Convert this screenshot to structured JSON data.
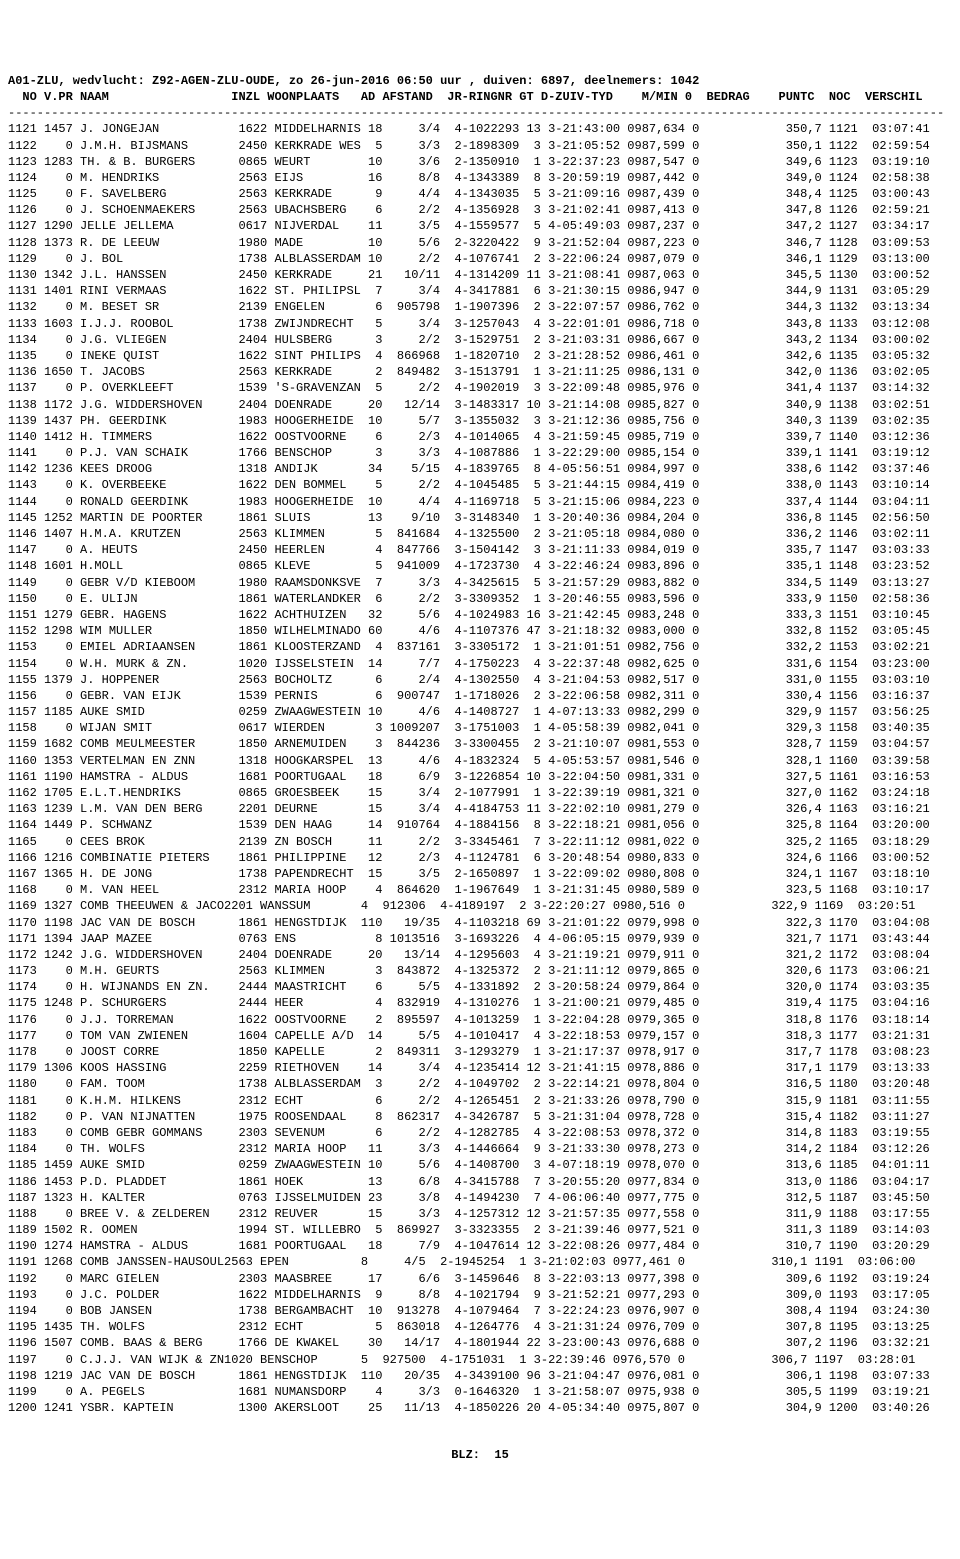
{
  "header": {
    "line1": "A01-ZLU, wedvlucht: Z92-AGEN-ZLU-OUDE, zo 26-jun-2016 06:50 uur , duiven: 6897, deelnemers: 1042",
    "line2": "  NO V.PR NAAM                 INZL WOONPLAATS   AD AFSTAND  JR-RINGNR GT D-ZUIV-TYD    M/MIN 0  BEDRAG    PUNTC  NOC  VERSCHIL",
    "divider": "----------------------------------------------------------------------------------------------------------------------------------"
  },
  "footer": "BLZ:  15",
  "columns": [
    "NO",
    "V.PR",
    "NAAM",
    "INZL",
    "WOONPLAATS",
    "AD",
    "AFSTAND",
    "JR-RINGNR",
    "GT",
    "D-ZUIV-TYD",
    "M/MIN",
    "0",
    "BEDRAG",
    "PUNTC",
    "NOC",
    "VERSCHIL"
  ],
  "groups": [
    [
      "1121 1457 J. JONGEJAN           1622 MIDDELHARNIS 18     3/4  4-1022293 13 3-21:43:00 0987,634 0            350,7 1121  03:07:41",
      "1122    0 J.M.H. BIJSMANS       2450 KERKRADE WES  5     3/3  2-1898309  3 3-21:05:52 0987,599 0            350,1 1122  02:59:54",
      "1123 1283 TH. & B. BURGERS      0865 WEURT        10     3/6  2-1350910  1 3-22:37:23 0987,547 0            349,6 1123  03:19:10",
      "1124    0 M. HENDRIKS           2563 EIJS         16     8/8  4-1343389  8 3-20:59:19 0987,442 0            349,0 1124  02:58:38",
      "1125    0 F. SAVELBERG          2563 KERKRADE      9     4/4  4-1343035  5 3-21:09:16 0987,439 0            348,4 1125  03:00:43",
      "1126    0 J. SCHOENMAEKERS      2563 UBACHSBERG    6     2/2  4-1356928  3 3-21:02:41 0987,413 0            347,8 1126  02:59:21",
      "1127 1290 JELLE JELLEMA         0617 NIJVERDAL    11     3/5  4-1559577  5 4-05:49:03 0987,237 0            347,2 1127  03:34:17",
      "1128 1373 R. DE LEEUW           1980 MADE         10     5/6  2-3220422  9 3-21:52:04 0987,223 0            346,7 1128  03:09:53",
      "1129    0 J. BOL                1738 ALBLASSERDAM 10     2/2  4-1076741  2 3-22:06:24 0987,079 0            346,1 1129  03:13:00",
      "1130 1342 J.L. HANSSEN          2450 KERKRADE     21   10/11  4-1314209 11 3-21:08:41 0987,063 0            345,5 1130  03:00:52"
    ],
    [
      "1131 1401 RINI VERMAAS          1622 ST. PHILIPSL  7     3/4  4-3417881  6 3-21:30:15 0986,947 0            344,9 1131  03:05:29",
      "1132    0 M. BESET SR           2139 ENGELEN       6  905798  1-1907396  2 3-22:07:57 0986,762 0            344,3 1132  03:13:34",
      "1133 1603 I.J.J. ROOBOL         1738 ZWIJNDRECHT   5     3/4  3-1257043  4 3-22:01:01 0986,718 0            343,8 1133  03:12:08",
      "1134    0 J.G. VLIEGEN          2404 HULSBERG      3     2/2  3-1529751  2 3-21:03:31 0986,667 0            343,2 1134  03:00:02",
      "1135    0 INEKE QUIST           1622 SINT PHILIPS  4  866968  1-1820710  2 3-21:28:52 0986,461 0            342,6 1135  03:05:32",
      "1136 1650 T. JACOBS             2563 KERKRADE      2  849482  3-1513791  1 3-21:11:25 0986,131 0            342,0 1136  03:02:05",
      "1137    0 P. OVERKLEEFT         1539 'S-GRAVENZAN  5     2/2  4-1902019  3 3-22:09:48 0985,976 0            341,4 1137  03:14:32",
      "1138 1172 J.G. WIDDERSHOVEN     2404 DOENRADE     20   12/14  3-1483317 10 3-21:14:08 0985,827 0            340,9 1138  03:02:51",
      "1139 1437 PH. GEERDINK          1983 HOOGERHEIDE  10     5/7  3-1355032  3 3-21:12:36 0985,756 0            340,3 1139  03:02:35",
      "1140 1412 H. TIMMERS            1622 OOSTVOORNE    6     2/3  4-1014065  4 3-21:59:45 0985,719 0            339,7 1140  03:12:36"
    ],
    [
      "1141    0 P.J. VAN SCHAIK       1766 BENSCHOP      3     3/3  4-1087886  1 3-22:29:00 0985,154 0            339,1 1141  03:19:12",
      "1142 1236 KEES DROOG            1318 ANDIJK       34    5/15  4-1839765  8 4-05:56:51 0984,997 0            338,6 1142  03:37:46",
      "1143    0 K. OVERBEEKE          1622 DEN BOMMEL    5     2/2  4-1045485  5 3-21:44:15 0984,419 0            338,0 1143  03:10:14",
      "1144    0 RONALD GEERDINK       1983 HOOGERHEIDE  10     4/4  4-1169718  5 3-21:15:06 0984,223 0            337,4 1144  03:04:11",
      "1145 1252 MARTIN DE POORTER     1861 SLUIS        13    9/10  3-3148340  1 3-20:40:36 0984,204 0            336,8 1145  02:56:50",
      "1146 1407 H.M.A. KRUTZEN        2563 KLIMMEN       5  841684  4-1325500  2 3-21:05:18 0984,080 0            336,2 1146  03:02:11",
      "1147    0 A. HEUTS              2450 HEERLEN       4  847766  3-1504142  3 3-21:11:33 0984,019 0            335,7 1147  03:03:33",
      "1148 1601 H.MOLL                0865 KLEVE         5  941009  4-1723730  4 3-22:46:24 0983,896 0            335,1 1148  03:23:52",
      "1149    0 GEBR V/D KIEBOOM      1980 RAAMSDONKSVE  7     3/3  4-3425615  5 3-21:57:29 0983,882 0            334,5 1149  03:13:27",
      "1150    0 E. ULIJN              1861 WATERLANDKER  6     2/2  3-3309352  1 3-20:46:55 0983,596 0            333,9 1150  02:58:36"
    ],
    [
      "1151 1279 GEBR. HAGENS          1622 ACHTHUIZEN   32     5/6  4-1024983 16 3-21:42:45 0983,248 0            333,3 1151  03:10:45",
      "1152 1298 WIM MULLER            1850 WILHELMINADO 60     4/6  4-1107376 47 3-21:18:32 0983,000 0            332,8 1152  03:05:45",
      "1153    0 EMIEL ADRIAANSEN      1861 KLOOSTERZAND  4  837161  3-3305172  1 3-21:01:51 0982,756 0            332,2 1153  03:02:21",
      "1154    0 W.H. MURK & ZN.       1020 IJSSELSTEIN  14     7/7  4-1750223  4 3-22:37:48 0982,625 0            331,6 1154  03:23:00",
      "1155 1379 J. HOPPENER           2563 BOCHOLTZ      6     2/4  4-1302550  4 3-21:04:53 0982,517 0            331,0 1155  03:03:10",
      "1156    0 GEBR. VAN EIJK        1539 PERNIS        6  900747  1-1718026  2 3-22:06:58 0982,311 0            330,4 1156  03:16:37",
      "1157 1185 AUKE SMID             0259 ZWAAGWESTEIN 10     4/6  4-1408727  1 4-07:13:33 0982,299 0            329,9 1157  03:56:25",
      "1158    0 WIJAN SMIT            0617 WIERDEN       3 1009207  3-1751003  1 4-05:58:39 0982,041 0            329,3 1158  03:40:35",
      "1159 1682 COMB MEULMEESTER      1850 ARNEMUIDEN    3  844236  3-3300455  2 3-21:10:07 0981,553 0            328,7 1159  03:04:57",
      "1160 1353 VERTELMAN EN ZNN      1318 HOOGKARSPEL  13     4/6  4-1832324  5 4-05:53:57 0981,546 0            328,1 1160  03:39:58"
    ],
    [
      "1161 1190 HAMSTRA - ALDUS       1681 POORTUGAAL   18     6/9  3-1226854 10 3-22:04:50 0981,331 0            327,5 1161  03:16:53",
      "1162 1705 E.L.T.HENDRIKS        0865 GROESBEEK    15     3/4  2-1077991  1 3-22:39:19 0981,321 0            327,0 1162  03:24:18",
      "1163 1239 L.M. VAN DEN BERG     2201 DEURNE       15     3/4  4-4184753 11 3-22:02:10 0981,279 0            326,4 1163  03:16:21",
      "1164 1449 P. SCHWANZ            1539 DEN HAAG     14  910764  4-1884156  8 3-22:18:21 0981,056 0            325,8 1164  03:20:00",
      "1165    0 CEES BROK             2139 ZN BOSCH     11     2/2  3-3345461  7 3-22:11:12 0981,022 0            325,2 1165  03:18:29",
      "1166 1216 COMBINATIE PIETERS    1861 PHILIPPINE   12     2/3  4-1124781  6 3-20:48:54 0980,833 0            324,6 1166  03:00:52",
      "1167 1365 H. DE JONG            1738 PAPENDRECHT  15     3/5  2-1650897  1 3-22:09:02 0980,808 0            324,1 1167  03:18:10",
      "1168    0 M. VAN HEEL           2312 MARIA HOOP    4  864620  1-1967649  1 3-21:31:45 0980,589 0            323,5 1168  03:10:17",
      "1169 1327 COMB THEEUWEN & JACO2201 WANSSUM       4  912306  4-4189197  2 3-22:20:27 0980,516 0            322,9 1169  03:20:51",
      "1170 1198 JAC VAN DE BOSCH      1861 HENGSTDIJK  110   19/35  4-1103218 69 3-21:01:22 0979,998 0            322,3 1170  03:04:08"
    ],
    [
      "1171 1394 JAAP MAZEE            0763 ENS           8 1013516  3-1693226  4 4-06:05:15 0979,939 0            321,7 1171  03:43:44",
      "1172 1242 J.G. WIDDERSHOVEN     2404 DOENRADE     20   13/14  4-1295603  4 3-21:19:21 0979,911 0            321,2 1172  03:08:04",
      "1173    0 M.H. GEURTS           2563 KLIMMEN       3  843872  4-1325372  2 3-21:11:12 0979,865 0            320,6 1173  03:06:21",
      "1174    0 H. WIJNANDS EN ZN.    2444 MAASTRICHT    6     5/5  4-1331892  2 3-20:58:24 0979,864 0            320,0 1174  03:03:35",
      "1175 1248 P. SCHURGERS          2444 HEER          4  832919  4-1310276  1 3-21:00:21 0979,485 0            319,4 1175  03:04:16",
      "1176    0 J.J. TORREMAN         1622 OOSTVOORNE    2  895597  4-1013259  1 3-22:04:28 0979,365 0            318,8 1176  03:18:14",
      "1177    0 TOM VAN ZWIENEN       1604 CAPELLE A/D  14     5/5  4-1010417  4 3-22:18:53 0979,157 0            318,3 1177  03:21:31",
      "1178    0 JOOST CORRE           1850 KAPELLE       2  849311  3-1293279  1 3-21:17:37 0978,917 0            317,7 1178  03:08:23",
      "1179 1306 KOOS HASSING          2259 RIETHOVEN    14     3/4  4-1235414 12 3-21:41:15 0978,886 0            317,1 1179  03:13:33",
      "1180    0 FAM. TOOM             1738 ALBLASSERDAM  3     2/2  4-1049702  2 3-22:14:21 0978,804 0            316,5 1180  03:20:48"
    ],
    [
      "1181    0 K.H.M. HILKENS        2312 ECHT          6     2/2  4-1265451  2 3-21:33:26 0978,790 0            315,9 1181  03:11:55",
      "1182    0 P. VAN NIJNATTEN      1975 ROOSENDAAL    8  862317  4-3426787  5 3-21:31:04 0978,728 0            315,4 1182  03:11:27",
      "1183    0 COMB GEBR GOMMANS     2303 SEVENUM       6     2/2  4-1282785  4 3-22:08:53 0978,372 0            314,8 1183  03:19:55",
      "1184    0 TH. WOLFS             2312 MARIA HOOP   11     3/3  4-1446664  9 3-21:33:30 0978,273 0            314,2 1184  03:12:26",
      "1185 1459 AUKE SMID             0259 ZWAAGWESTEIN 10     5/6  4-1408700  3 4-07:18:19 0978,070 0            313,6 1185  04:01:11",
      "1186 1453 P.D. PLADDET          1861 HOEK         13     6/8  4-3415788  7 3-20:55:20 0977,834 0            313,0 1186  03:04:17",
      "1187 1323 H. KALTER             0763 IJSSELMUIDEN 23     3/8  4-1494230  7 4-06:06:40 0977,775 0            312,5 1187  03:45:50",
      "1188    0 BREE V. & ZELDEREN    2312 REUVER       15     3/3  4-1257312 12 3-21:57:35 0977,558 0            311,9 1188  03:17:55",
      "1189 1502 R. OOMEN              1994 ST. WILLEBRO  5  869927  3-3323355  2 3-21:39:46 0977,521 0            311,3 1189  03:14:03",
      "1190 1274 HAMSTRA - ALDUS       1681 POORTUGAAL   18     7/9  4-1047614 12 3-22:08:26 0977,484 0            310,7 1190  03:20:29"
    ],
    [
      "1191 1268 COMB JANSSEN-HAUSOUL2563 EPEN          8     4/5  2-1945254  1 3-21:02:03 0977,461 0            310,1 1191  03:06:00",
      "1192    0 MARC GIELEN           2303 MAASBREE     17     6/6  3-1459646  8 3-22:03:13 0977,398 0            309,6 1192  03:19:24",
      "1193    0 J.C. POLDER           1622 MIDDELHARNIS  9     8/8  4-1021794  9 3-21:52:21 0977,293 0            309,0 1193  03:17:05",
      "1194    0 BOB JANSEN            1738 BERGAMBACHT  10  913278  4-1079464  7 3-22:24:23 0976,907 0            308,4 1194  03:24:30",
      "1195 1435 TH. WOLFS             2312 ECHT          5  863018  4-1264776  4 3-21:31:24 0976,709 0            307,8 1195  03:13:25",
      "1196 1507 COMB. BAAS & BERG     1766 DE KWAKEL    30   14/17  4-1801944 22 3-23:00:43 0976,688 0            307,2 1196  03:32:21",
      "1197    0 C.J.J. VAN WIJK & ZN1020 BENSCHOP      5  927500  4-1751031  1 3-22:39:46 0976,570 0            306,7 1197  03:28:01",
      "1198 1219 JAC VAN DE BOSCH      1861 HENGSTDIJK  110   20/35  4-3439100 96 3-21:04:47 0976,081 0            306,1 1198  03:07:33",
      "1199    0 A. PEGELS             1681 NUMANSDORP    4     3/3  0-1646320  1 3-21:58:07 0975,938 0            305,5 1199  03:19:21",
      "1200 1241 YSBR. KAPTEIN         1300 AKERSLOOT    25   11/13  4-1850226 20 4-05:34:40 0975,807 0            304,9 1200  03:40:26"
    ]
  ]
}
